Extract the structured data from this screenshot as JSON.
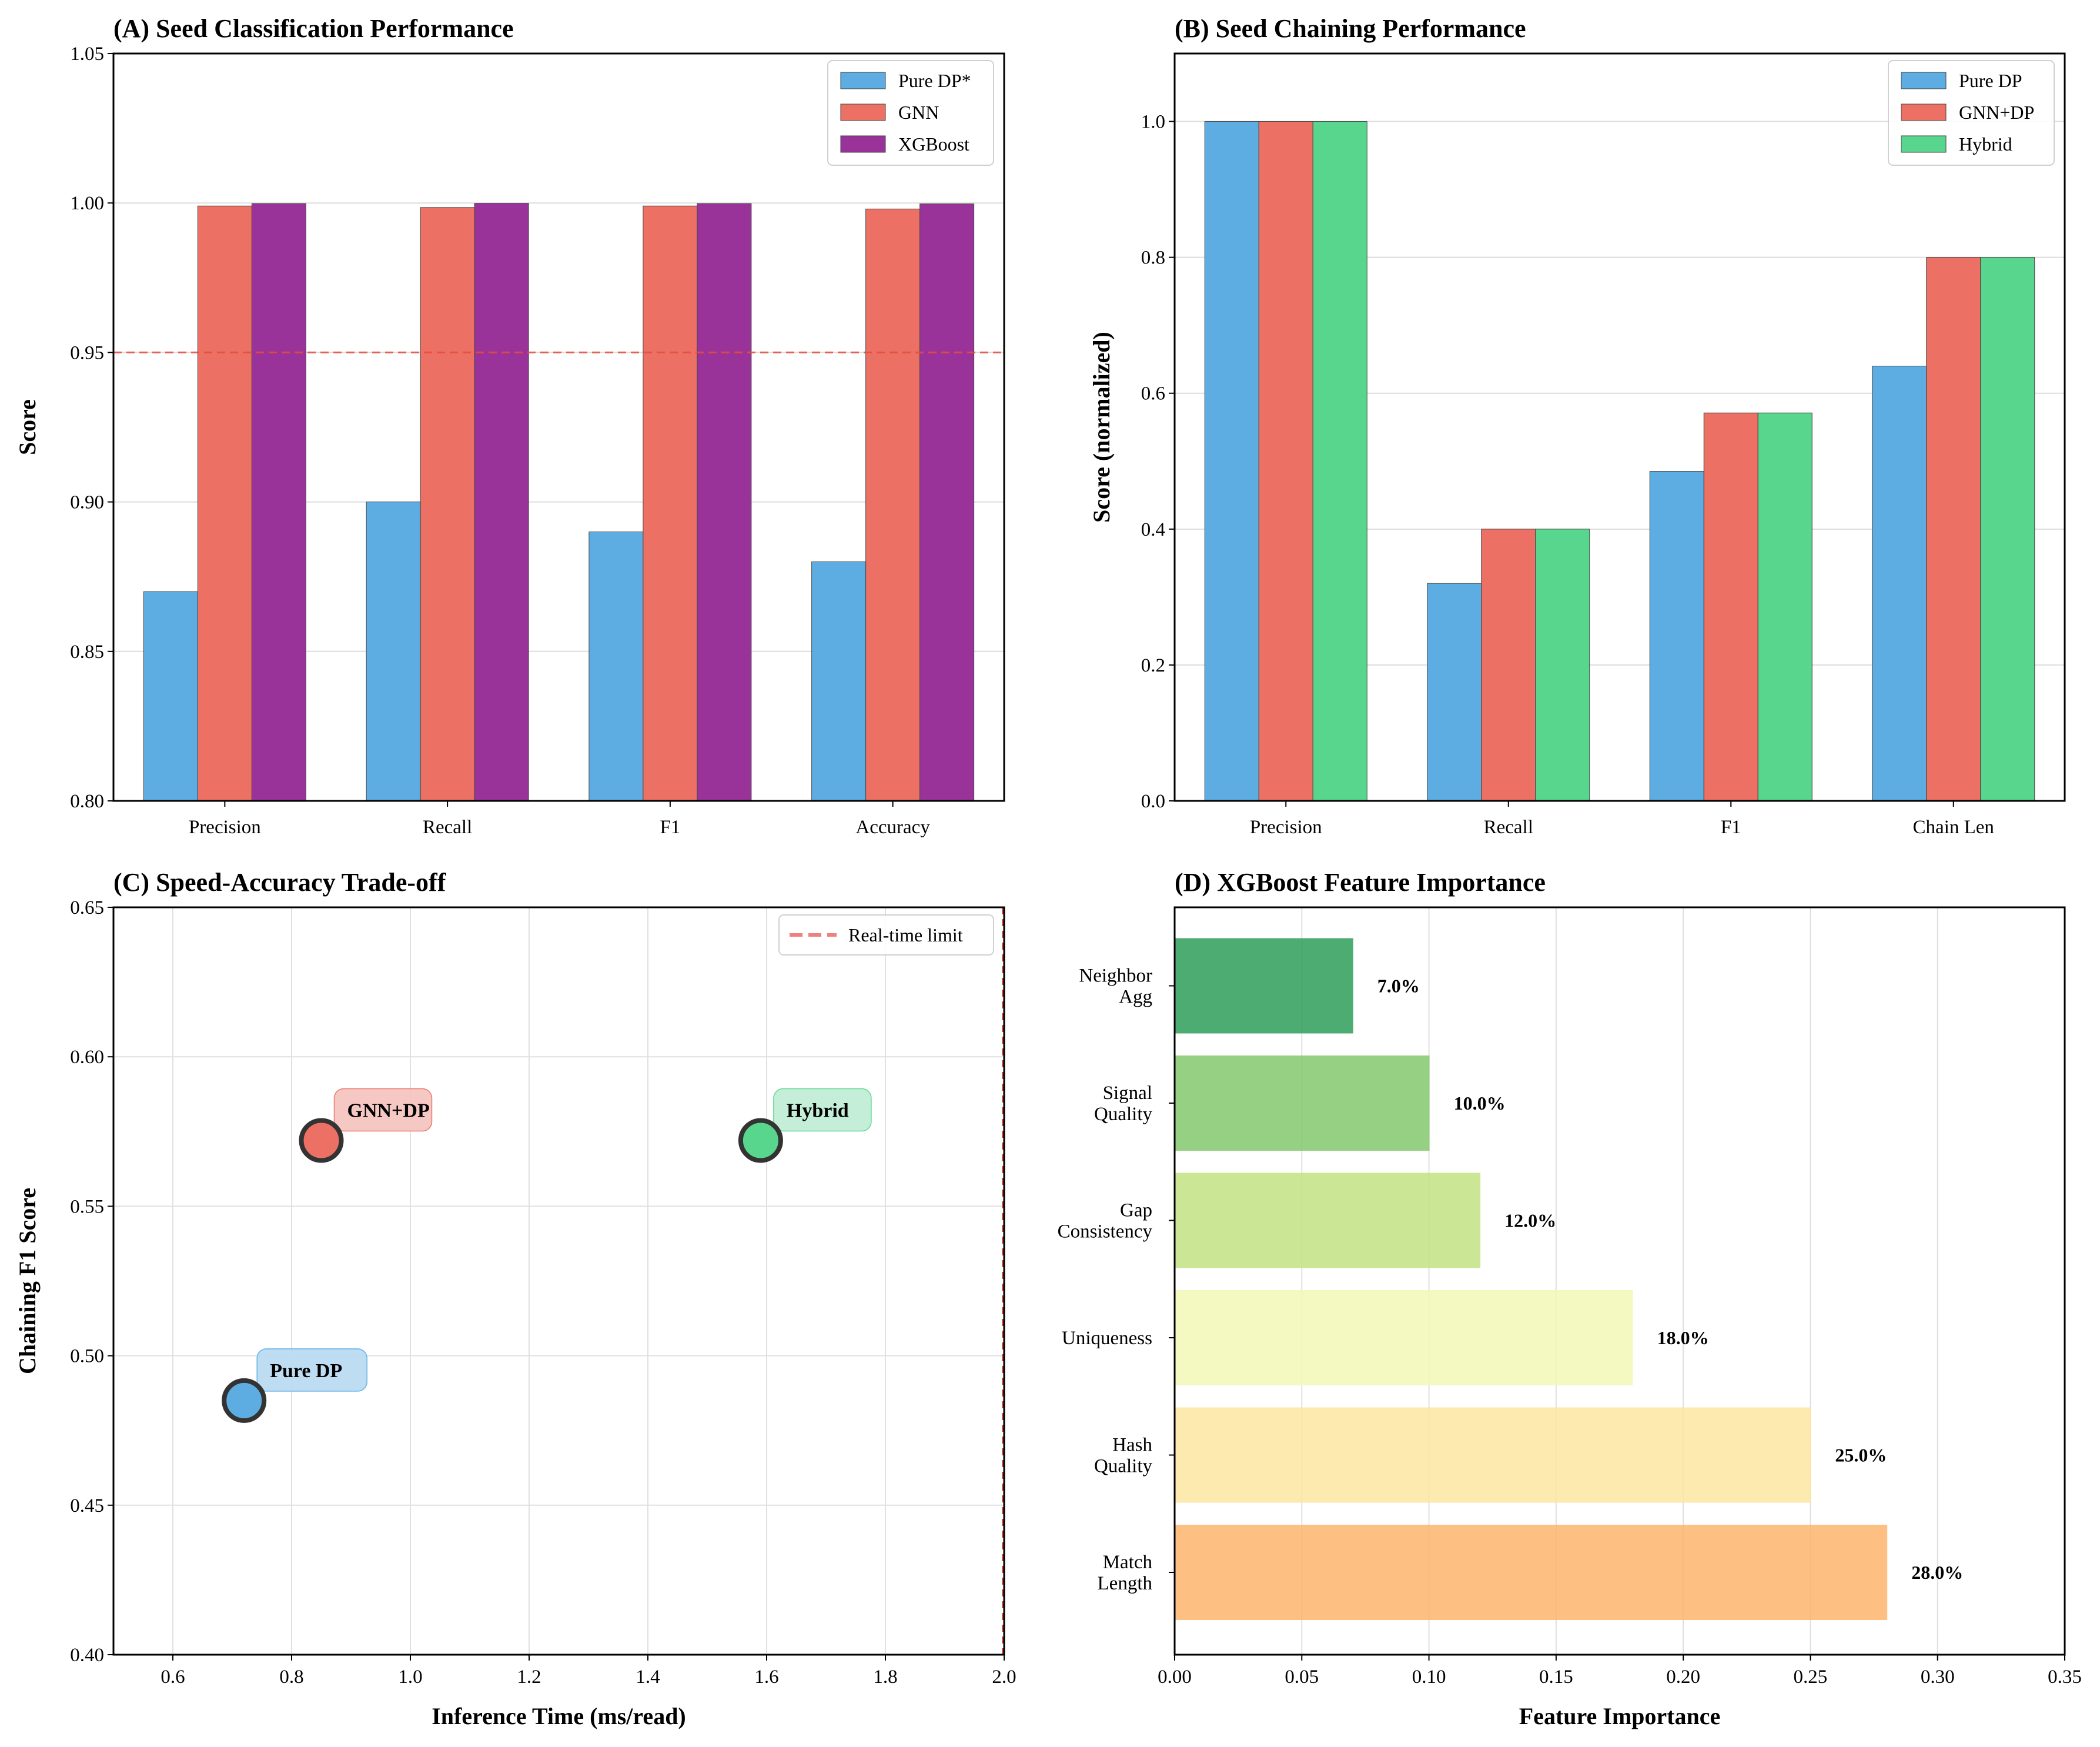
{
  "chart_data": [
    {
      "id": "A",
      "type": "bar",
      "title": "(A) Seed Classification Performance",
      "xlabel": "",
      "ylabel": "Score",
      "categories": [
        "Precision",
        "Recall",
        "F1",
        "Accuracy"
      ],
      "series": [
        {
          "name": "Pure DP*",
          "color": "#5DADE2",
          "values": [
            0.87,
            0.9,
            0.89,
            0.88
          ]
        },
        {
          "name": "GNN",
          "color": "#EC7063",
          "values": [
            0.999,
            0.9985,
            0.999,
            0.998
          ]
        },
        {
          "name": "XGBoost",
          "color": "#993399",
          "values": [
            0.9998,
            0.9999,
            0.9998,
            0.9997
          ]
        }
      ],
      "ylim": [
        0.8,
        1.05
      ],
      "yticks": [
        0.8,
        0.85,
        0.9,
        0.95,
        1.0,
        1.05
      ],
      "ytick_labels": [
        "0.80",
        "0.85",
        "0.90",
        "0.95",
        "1.00",
        "1.05"
      ],
      "reference_line": {
        "value": 0.95,
        "color": "#E74C3C"
      },
      "grid": "y",
      "legend_loc": "top-right"
    },
    {
      "id": "B",
      "type": "bar",
      "title": "(B) Seed Chaining Performance",
      "xlabel": "",
      "ylabel": "Score (normalized)",
      "categories": [
        "Precision",
        "Recall",
        "F1",
        "Chain Len"
      ],
      "series": [
        {
          "name": "Pure DP",
          "color": "#5DADE2",
          "values": [
            1.0,
            0.32,
            0.485,
            0.64
          ]
        },
        {
          "name": "GNN+DP",
          "color": "#EC7063",
          "values": [
            1.0,
            0.4,
            0.571,
            0.8
          ]
        },
        {
          "name": "Hybrid",
          "color": "#58D68D",
          "values": [
            1.0,
            0.4,
            0.571,
            0.8
          ]
        }
      ],
      "ylim": [
        0.0,
        1.1
      ],
      "yticks": [
        0.0,
        0.2,
        0.4,
        0.6,
        0.8,
        1.0
      ],
      "ytick_labels": [
        "0.0",
        "0.2",
        "0.4",
        "0.6",
        "0.8",
        "1.0"
      ],
      "grid": "y",
      "legend_loc": "top-right"
    },
    {
      "id": "C",
      "type": "scatter",
      "title": "(C) Speed-Accuracy Trade-off",
      "xlabel": "Inference Time (ms/read)",
      "ylabel": "Chaining F1 Score",
      "points": [
        {
          "label": "Pure DP",
          "x": 0.72,
          "y": 0.485,
          "color": "#5DADE2",
          "label_bg": "#BBDCF3"
        },
        {
          "label": "GNN+DP",
          "x": 0.85,
          "y": 0.572,
          "color": "#EC7063",
          "label_bg": "#F5C6C0"
        },
        {
          "label": "Hybrid",
          "x": 1.59,
          "y": 0.572,
          "color": "#58D68D",
          "label_bg": "#C1EED5"
        }
      ],
      "xlim": [
        0.5,
        2.0
      ],
      "ylim": [
        0.4,
        0.65
      ],
      "xticks": [
        0.6,
        0.8,
        1.0,
        1.2,
        1.4,
        1.6,
        1.8,
        2.0
      ],
      "xtick_labels": [
        "0.6",
        "0.8",
        "1.0",
        "1.2",
        "1.4",
        "1.6",
        "1.8",
        "2.0"
      ],
      "yticks": [
        0.4,
        0.45,
        0.5,
        0.55,
        0.6,
        0.65
      ],
      "ytick_labels": [
        "0.40",
        "0.45",
        "0.50",
        "0.55",
        "0.60",
        "0.65"
      ],
      "reference_line": {
        "label": "Real-time limit",
        "x": 2.0,
        "color": "#F08080"
      },
      "grid": "both",
      "legend_loc": "top-right"
    },
    {
      "id": "D",
      "type": "hbar",
      "title": "(D) XGBoost Feature Importance",
      "xlabel": "Feature Importance",
      "ylabel": "",
      "categories": [
        {
          "lines": [
            "Match",
            "Length"
          ]
        },
        {
          "lines": [
            "Hash",
            "Quality"
          ]
        },
        {
          "lines": [
            "Uniqueness"
          ]
        },
        {
          "lines": [
            "Gap",
            "Consistency"
          ]
        },
        {
          "lines": [
            "Signal",
            "Quality"
          ]
        },
        {
          "lines": [
            "Neighbor",
            "Agg"
          ]
        }
      ],
      "values": [
        0.28,
        0.25,
        0.18,
        0.12,
        0.1,
        0.07
      ],
      "value_labels": [
        "28.0%",
        "25.0%",
        "18.0%",
        "12.0%",
        "10.0%",
        "7.0%"
      ],
      "colors": [
        "#FDB56D",
        "#FDE7A1",
        "#F2F9B7",
        "#C3E383",
        "#84C96E",
        "#2E9E5A"
      ],
      "xlim": [
        0.0,
        0.35
      ],
      "xticks": [
        0.0,
        0.05,
        0.1,
        0.15,
        0.2,
        0.25,
        0.3,
        0.35
      ],
      "xtick_labels": [
        "0.00",
        "0.05",
        "0.10",
        "0.15",
        "0.20",
        "0.25",
        "0.30",
        "0.35"
      ],
      "grid": "x"
    }
  ]
}
